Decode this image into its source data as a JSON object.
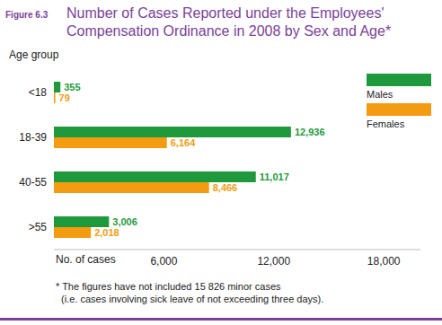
{
  "chart_data": {
    "type": "bar",
    "orientation": "horizontal",
    "figure_label": "Figure 6.3",
    "title": "Number of Cases Reported under the Employees' Compensation Ordinance in 2008 by Sex and Age*",
    "y_label": "Age group",
    "x_label": "No. of cases",
    "footnote": [
      "* The figures have not included 15 826 minor cases",
      "(i.e. cases involving sick leave of not exceeding three days)."
    ],
    "categories": [
      "<18",
      "18-39",
      "40-55",
      ">55"
    ],
    "series": [
      {
        "name": "Males",
        "color": "#1e9a3c",
        "values": [
          355,
          12936,
          11017,
          3006
        ],
        "value_labels": [
          "355",
          "12,936",
          "11,017",
          "3,006"
        ]
      },
      {
        "name": "Females",
        "color": "#f39c12",
        "values": [
          79,
          6164,
          8466,
          2018
        ],
        "value_labels": [
          "79",
          "6,164",
          "8,466",
          "2,018"
        ]
      }
    ],
    "xlim": [
      0,
      20000
    ],
    "xticks": [
      {
        "value": 6000,
        "label": "6,000"
      },
      {
        "value": 12000,
        "label": "12,000"
      },
      {
        "value": 18000,
        "label": "18,000"
      }
    ],
    "data_labels": true,
    "legend": "right",
    "grid": false
  }
}
